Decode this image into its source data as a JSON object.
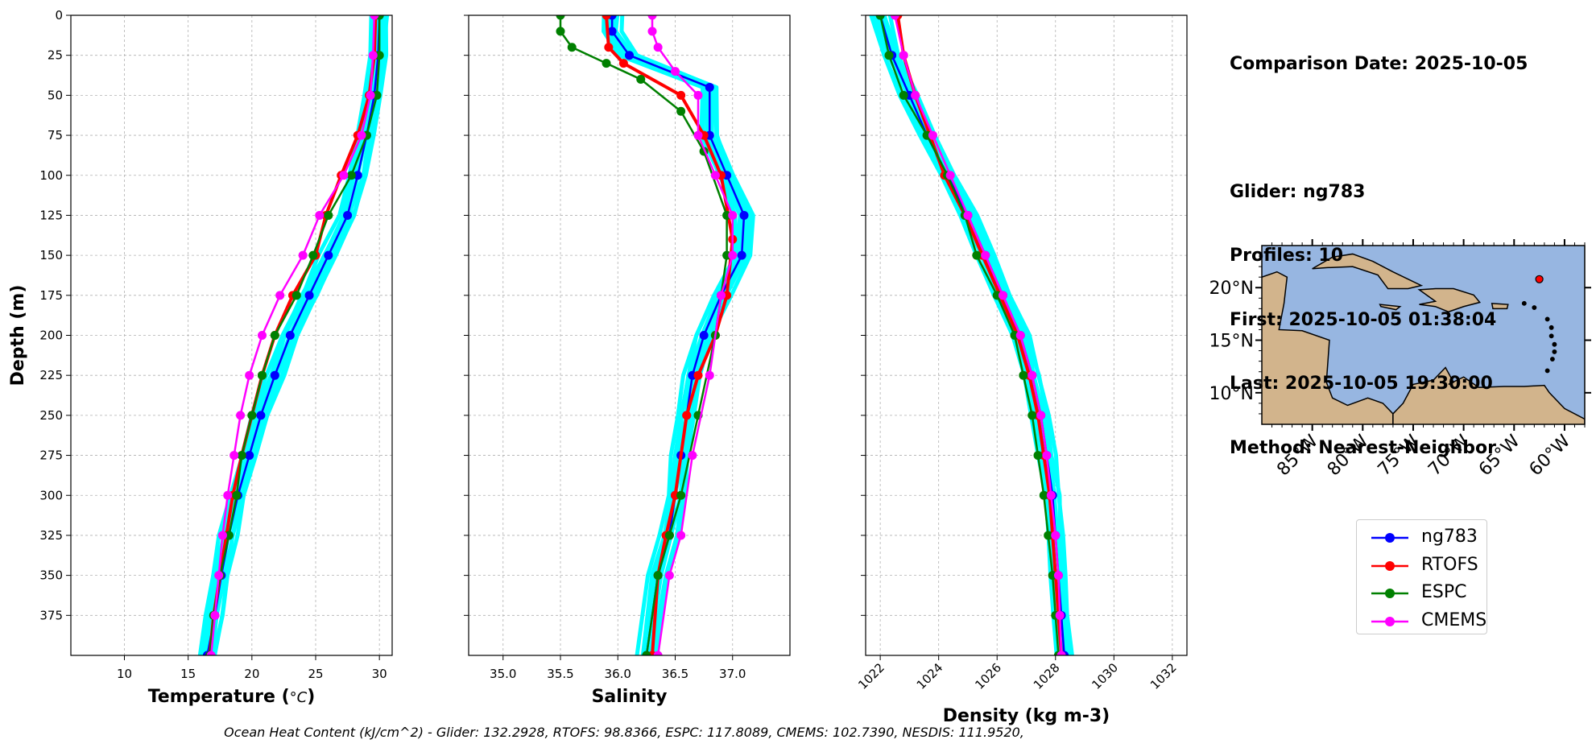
{
  "info": {
    "comparison_date": "Comparison Date: 2025-10-05",
    "glider": "Glider: ng783",
    "profiles": "Profiles: 10",
    "first": "First: 2025-10-05 01:38:04",
    "last": "Last: 2025-10-05 19:30:00",
    "method": "Method: Nearest-Neighbor"
  },
  "footer": "Ocean Heat Content (kJ/cm^2) - Glider: 132.2928,  RTOFS: 98.8366,  ESPC: 117.8089,  CMEMS: 102.7390,  NESDIS: 111.9520,",
  "legend": [
    {
      "label": "ng783",
      "color": "#0000ff"
    },
    {
      "label": "RTOFS",
      "color": "#ff0000"
    },
    {
      "label": "ESPC",
      "color": "#008000"
    },
    {
      "label": "CMEMS",
      "color": "#ff00ff"
    }
  ],
  "colors": {
    "glider_profiles": "#00ffff",
    "ocean": "#97b6e1",
    "land": "#d2b48c"
  },
  "chart_data": [
    {
      "type": "line",
      "xlabel": "Temperature ($^{o}C$)",
      "ylabel": "Depth (m)",
      "xlim": [
        5.8,
        31
      ],
      "ylim": [
        400,
        0
      ],
      "xticks": [
        10,
        15,
        20,
        25,
        30
      ],
      "yticks": [
        0,
        25,
        50,
        75,
        100,
        125,
        150,
        175,
        200,
        225,
        250,
        275,
        300,
        325,
        350,
        375
      ],
      "grid": true,
      "series": [
        {
          "name": "ng783",
          "x": [
            30.0,
            29.9,
            29.6,
            29.0,
            28.3,
            27.5,
            26.0,
            24.5,
            23.0,
            21.8,
            20.7,
            19.8,
            18.9,
            18.2,
            17.6,
            17.1,
            16.5
          ],
          "y": [
            0,
            25,
            50,
            75,
            100,
            125,
            150,
            175,
            200,
            225,
            250,
            275,
            300,
            325,
            350,
            375,
            400
          ]
        },
        {
          "name": "RTOFS",
          "x": [
            29.7,
            29.6,
            29.2,
            28.3,
            27.0,
            25.8,
            25.0,
            23.2,
            21.8,
            20.8,
            20.0,
            19.2,
            18.5,
            18.0,
            17.5,
            17.0,
            16.7
          ],
          "y": [
            0,
            25,
            50,
            75,
            100,
            125,
            150,
            175,
            200,
            225,
            250,
            275,
            300,
            325,
            350,
            375,
            400
          ]
        },
        {
          "name": "ESPC",
          "x": [
            30.0,
            30.0,
            29.8,
            29.0,
            27.8,
            26.0,
            24.8,
            23.5,
            21.8,
            20.8,
            20.0,
            19.2,
            18.8,
            18.2,
            17.5,
            17.0,
            16.7
          ],
          "y": [
            0,
            25,
            50,
            75,
            100,
            125,
            150,
            175,
            200,
            225,
            250,
            275,
            300,
            325,
            350,
            375,
            400
          ]
        },
        {
          "name": "CMEMS",
          "x": [
            29.6,
            29.5,
            29.3,
            28.6,
            27.2,
            25.3,
            24.0,
            22.2,
            20.8,
            19.8,
            19.1,
            18.6,
            18.1,
            17.7,
            17.4,
            17.1,
            16.8
          ],
          "y": [
            0,
            25,
            50,
            75,
            100,
            125,
            150,
            175,
            200,
            225,
            250,
            275,
            300,
            325,
            350,
            375,
            400
          ]
        }
      ]
    },
    {
      "type": "line",
      "xlabel": "Salinity",
      "ylabel": "",
      "xlim": [
        34.7,
        37.5
      ],
      "ylim": [
        400,
        0
      ],
      "xticks": [
        35.0,
        35.5,
        36.0,
        36.5,
        37.0
      ],
      "yticks": [
        0,
        25,
        50,
        75,
        100,
        125,
        150,
        175,
        200,
        225,
        250,
        275,
        300,
        325,
        350,
        375
      ],
      "grid": true,
      "series": [
        {
          "name": "ng783",
          "x": [
            35.95,
            35.95,
            36.1,
            36.8,
            36.8,
            36.95,
            37.1,
            37.08,
            36.9,
            36.75,
            36.65,
            36.6,
            36.55,
            36.5,
            36.45,
            36.35,
            36.25
          ],
          "y": [
            0,
            10,
            25,
            45,
            75,
            100,
            125,
            150,
            175,
            200,
            225,
            250,
            275,
            300,
            325,
            350,
            400
          ]
        },
        {
          "name": "RTOFS",
          "x": [
            35.9,
            35.92,
            36.05,
            36.55,
            36.75,
            36.9,
            37.0,
            36.95,
            36.85,
            36.7,
            36.6,
            36.5,
            36.42,
            36.35,
            36.3
          ],
          "y": [
            0,
            20,
            30,
            50,
            75,
            100,
            140,
            175,
            200,
            225,
            250,
            300,
            325,
            350,
            400
          ]
        },
        {
          "name": "ESPC",
          "x": [
            35.5,
            35.5,
            35.6,
            35.9,
            36.2,
            36.55,
            36.75,
            36.95,
            36.95,
            36.85,
            36.7,
            36.55,
            36.45,
            36.35,
            36.25
          ],
          "y": [
            0,
            10,
            20,
            30,
            40,
            60,
            85,
            125,
            150,
            200,
            250,
            300,
            325,
            350,
            400
          ]
        },
        {
          "name": "CMEMS",
          "x": [
            36.3,
            36.3,
            36.35,
            36.5,
            36.7,
            36.7,
            36.85,
            37.0,
            37.0,
            36.9,
            36.8,
            36.65,
            36.55,
            36.45,
            36.35
          ],
          "y": [
            0,
            10,
            20,
            35,
            50,
            75,
            100,
            125,
            150,
            175,
            225,
            275,
            325,
            350,
            400
          ]
        }
      ]
    },
    {
      "type": "line",
      "xlabel": "Density (kg m-3)",
      "ylabel": "",
      "xlim": [
        1021.5,
        1032.5
      ],
      "ylim": [
        400,
        0
      ],
      "xticks": [
        1022,
        1024,
        1026,
        1028,
        1030,
        1032
      ],
      "yticks": [
        0,
        25,
        50,
        75,
        100,
        125,
        150,
        175,
        200,
        225,
        250,
        275,
        300,
        325,
        350,
        375
      ],
      "grid": true,
      "series": [
        {
          "name": "ng783",
          "x": [
            1022.0,
            1022.4,
            1023.0,
            1023.6,
            1024.3,
            1025.0,
            1025.6,
            1026.2,
            1026.8,
            1027.2,
            1027.5,
            1027.7,
            1027.9,
            1028.0,
            1028.1,
            1028.2,
            1028.3
          ],
          "y": [
            0,
            25,
            50,
            75,
            100,
            125,
            150,
            175,
            200,
            225,
            250,
            275,
            300,
            325,
            350,
            375,
            400
          ]
        },
        {
          "name": "RTOFS",
          "x": [
            1022.6,
            1022.8,
            1023.2,
            1023.7,
            1024.2,
            1024.9,
            1025.5,
            1026.1,
            1026.7,
            1027.1,
            1027.4,
            1027.6,
            1027.8,
            1027.9,
            1028.0,
            1028.1,
            1028.2
          ],
          "y": [
            0,
            25,
            50,
            75,
            100,
            125,
            150,
            175,
            200,
            225,
            250,
            275,
            300,
            325,
            350,
            375,
            400
          ]
        },
        {
          "name": "ESPC",
          "x": [
            1022.0,
            1022.3,
            1022.8,
            1023.6,
            1024.3,
            1024.9,
            1025.3,
            1026.0,
            1026.6,
            1026.9,
            1027.2,
            1027.4,
            1027.6,
            1027.75,
            1027.9,
            1028.0,
            1028.1
          ],
          "y": [
            0,
            25,
            50,
            75,
            100,
            125,
            150,
            175,
            200,
            225,
            250,
            275,
            300,
            325,
            350,
            375,
            400
          ]
        },
        {
          "name": "CMEMS",
          "x": [
            1022.5,
            1022.8,
            1023.2,
            1023.8,
            1024.4,
            1025.0,
            1025.6,
            1026.2,
            1026.8,
            1027.2,
            1027.5,
            1027.7,
            1027.85,
            1028.0,
            1028.1,
            1028.15,
            1028.2
          ],
          "y": [
            0,
            25,
            50,
            75,
            100,
            125,
            150,
            175,
            200,
            225,
            250,
            275,
            300,
            325,
            350,
            375,
            400
          ]
        }
      ]
    }
  ],
  "map": {
    "lon_range": [
      -90,
      -58
    ],
    "lat_range": [
      7,
      24
    ],
    "xticks": [
      "85°W",
      "80°W",
      "75°W",
      "70°W",
      "65°W",
      "60°W"
    ],
    "yticks": [
      "20°N",
      "15°N",
      "10°N"
    ],
    "glider_position": {
      "lon": -62.5,
      "lat": 20.8
    }
  }
}
